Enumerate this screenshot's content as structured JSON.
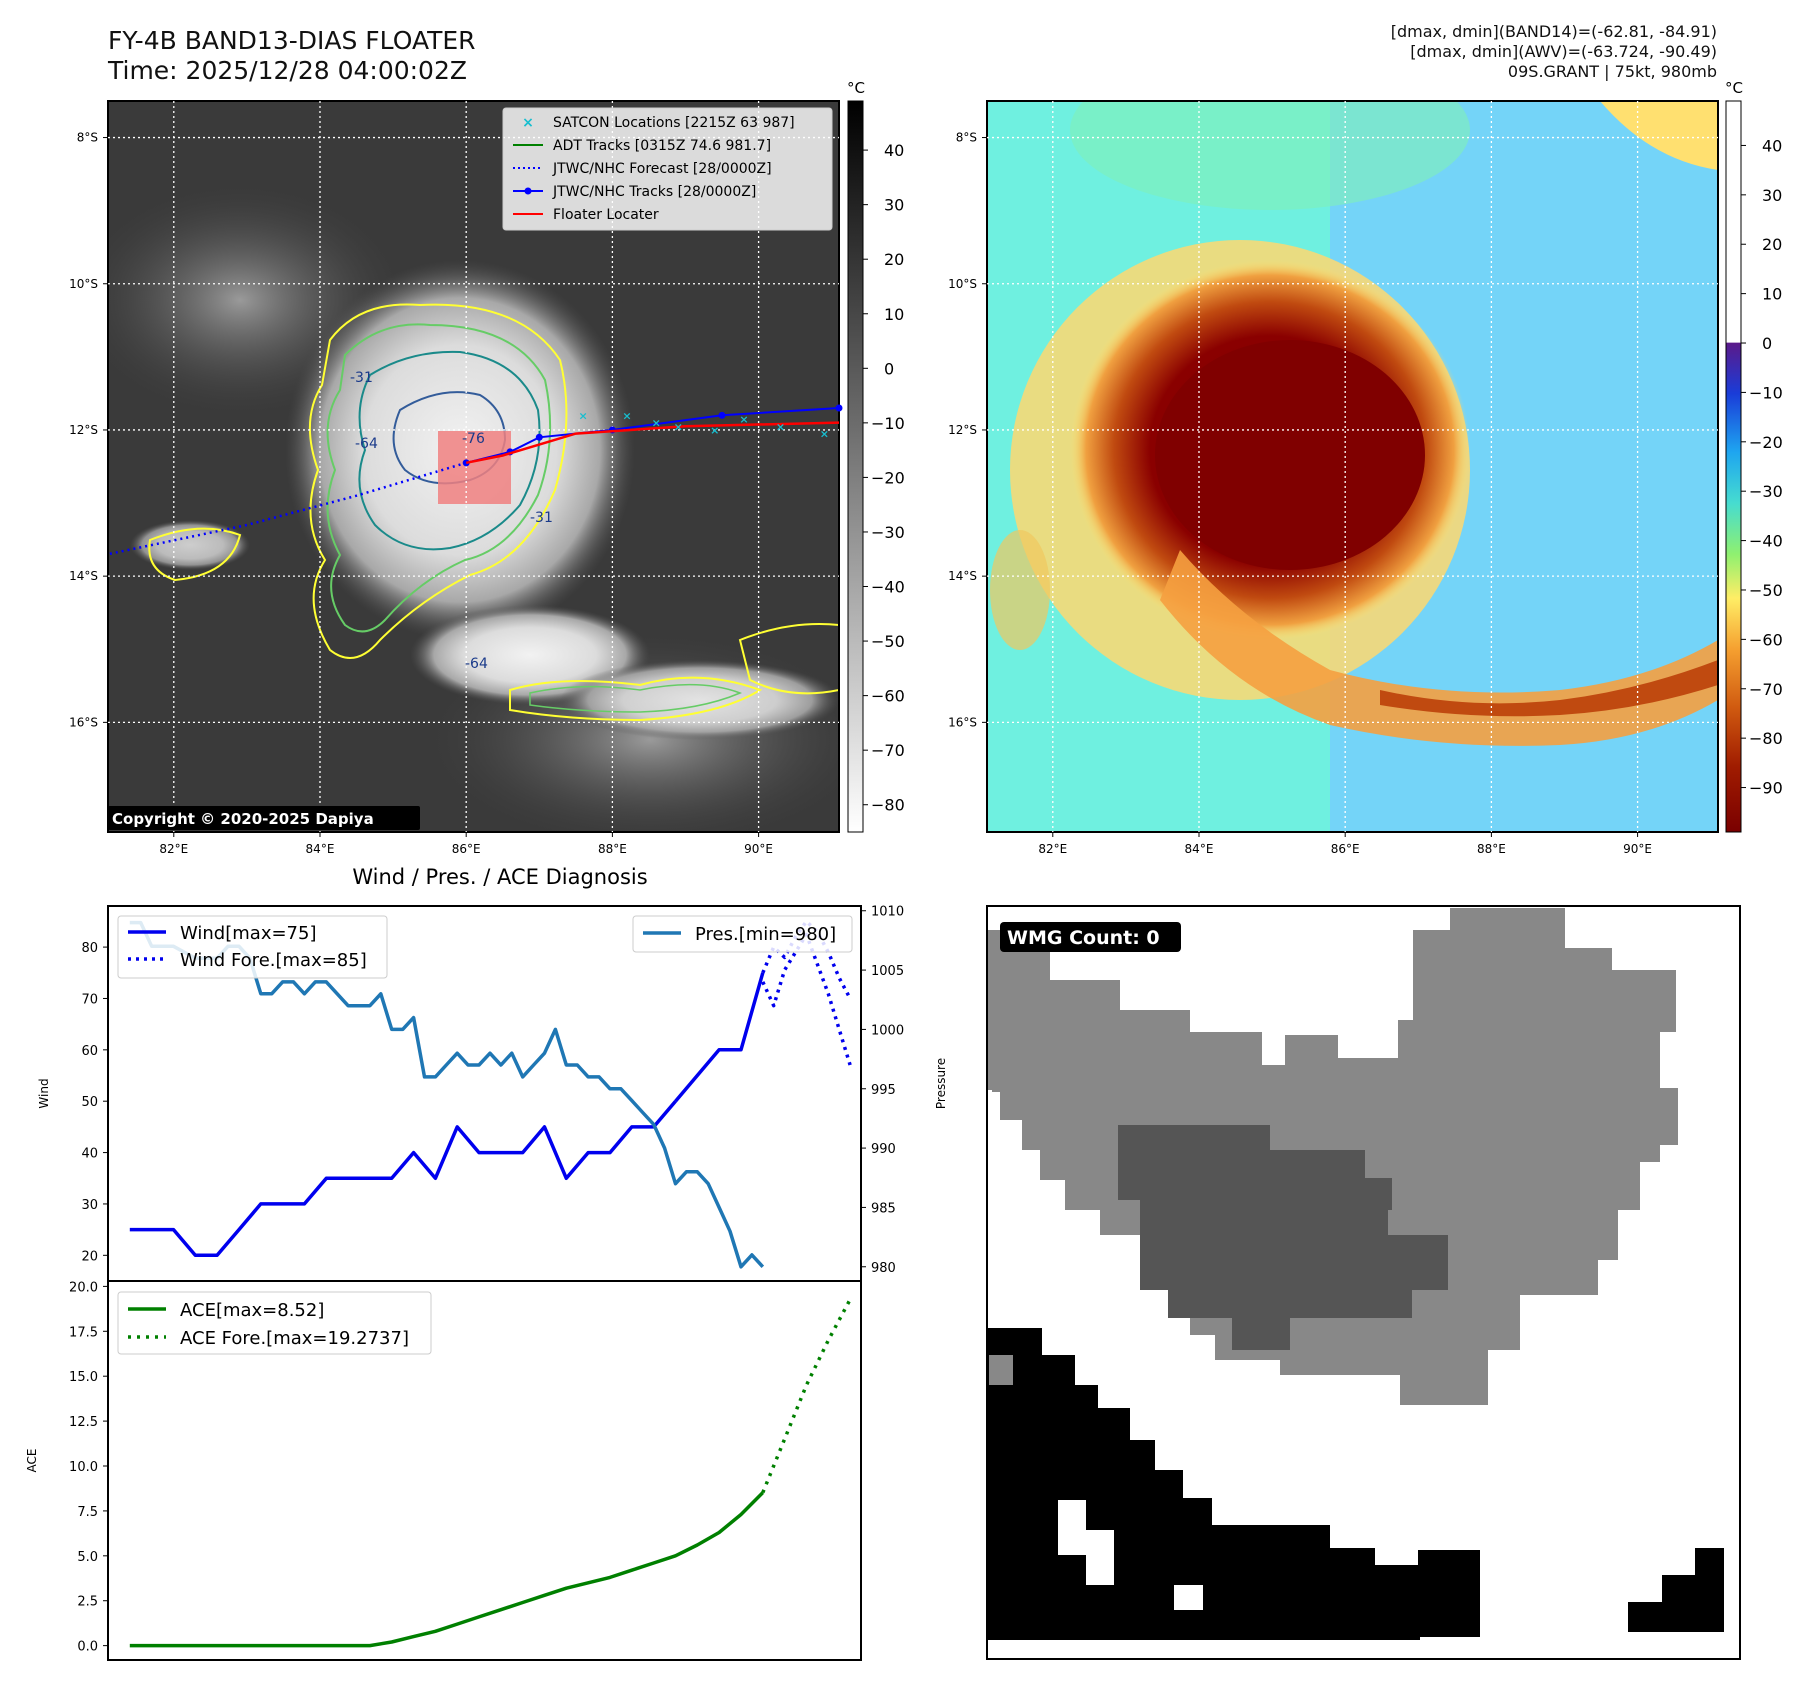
{
  "header": {
    "title_line1": "FY-4B BAND13-DIAS FLOATER",
    "title_line2": "Time: 2025/12/28 04:00:02Z",
    "info_line1": "[dmax, dmin](BAND14)=(-62.81, -84.91)",
    "info_line2": "[dmax, dmin](AWV)=(-63.724, -90.49)",
    "info_line3": "09S.GRANT | 75kt, 980mb"
  },
  "colors": {
    "wind": "#0000ee",
    "pressure": "#1f77b4",
    "ace": "#008000",
    "track_red": "#ff0000",
    "contour_yellow": "#ffff33",
    "contour_green": "#66cc66",
    "contour_teal": "#1a8a8a"
  },
  "chart_data": [
    {
      "type": "image",
      "name": "ir-map",
      "xticklabels": [
        "82°E",
        "84°E",
        "86°E",
        "88°E",
        "90°E"
      ],
      "xticks": [
        82,
        84,
        86,
        88,
        90
      ],
      "yticklabels": [
        "8°S",
        "10°S",
        "12°S",
        "14°S",
        "16°S"
      ],
      "yticks": [
        8,
        10,
        12,
        14,
        16
      ],
      "lon_range": [
        81.1,
        91.1
      ],
      "lat_range": [
        7.5,
        17.5
      ],
      "colorbar_unit": "°C",
      "colorbar_ticks": [
        40,
        30,
        20,
        10,
        0,
        -10,
        -20,
        -30,
        -40,
        -50,
        -60,
        -70,
        -80
      ],
      "colorbar_range": [
        49,
        -85
      ],
      "contour_labels": [
        "-31",
        "-64",
        "-76",
        "-31",
        "-64"
      ],
      "copyright": "Copyright © 2020-2025 Dapiya",
      "legend": [
        {
          "label": "SATCON Locations [2215Z 63 987]",
          "style": "x",
          "color": "#17becf"
        },
        {
          "label": "ADT Tracks [0315Z 74.6 981.7]",
          "style": "line",
          "color": "#008000"
        },
        {
          "label": "JTWC/NHC Forecast [28/0000Z]",
          "style": "dotted",
          "color": "#0000ff"
        },
        {
          "label": "JTWC/NHC Tracks [28/0000Z]",
          "style": "line-dot",
          "color": "#0000ff"
        },
        {
          "label": "Floater Locater",
          "style": "line",
          "color": "#ff0000"
        }
      ],
      "jtwc_track": [
        [
          91.1,
          11.7
        ],
        [
          89.5,
          11.8
        ],
        [
          88.0,
          12.0
        ],
        [
          87.0,
          12.1
        ],
        [
          86.6,
          12.3
        ],
        [
          86.0,
          12.45
        ]
      ],
      "jtwc_forecast": [
        [
          86.0,
          12.45
        ],
        [
          84.5,
          12.9
        ],
        [
          83.0,
          13.3
        ],
        [
          81.1,
          13.7
        ]
      ],
      "floater_track": [
        [
          91.1,
          11.9
        ],
        [
          89.0,
          11.95
        ],
        [
          87.5,
          12.05
        ],
        [
          86.5,
          12.35
        ],
        [
          86.0,
          12.45
        ]
      ]
    },
    {
      "type": "image",
      "name": "awv-map",
      "xticklabels": [
        "82°E",
        "84°E",
        "86°E",
        "88°E",
        "90°E"
      ],
      "xticks": [
        82,
        84,
        86,
        88,
        90
      ],
      "yticklabels": [
        "8°S",
        "10°S",
        "12°S",
        "14°S",
        "16°S"
      ],
      "yticks": [
        8,
        10,
        12,
        14,
        16
      ],
      "colorbar_unit": "°C",
      "colorbar_ticks": [
        40,
        30,
        20,
        10,
        0,
        -10,
        -20,
        -30,
        -40,
        -50,
        -60,
        -70,
        -80,
        -90
      ],
      "colorbar_range": [
        49,
        -99
      ]
    },
    {
      "type": "line",
      "name": "wind-pressure",
      "title": "Wind / Pres. / ACE Diagnosis",
      "ylabel": "Wind",
      "ylabel2": "Pressure",
      "ylim": [
        15,
        88
      ],
      "ylim2": [
        978.8,
        1010.4
      ],
      "xlim": [
        -1,
        33.5
      ],
      "yticks": [
        20,
        30,
        40,
        50,
        60,
        70,
        80
      ],
      "yticks2": [
        980,
        985,
        990,
        995,
        1000,
        1005,
        1010
      ],
      "series": [
        {
          "name": "Wind[max=75]",
          "style": "solid",
          "color": "#0000ee",
          "x": [
            0,
            1,
            2,
            3,
            4,
            5,
            6,
            7,
            8,
            9,
            10,
            11,
            12,
            13,
            14,
            15,
            16,
            17,
            18,
            19,
            20,
            21,
            22,
            23,
            24,
            25
          ],
          "values": [
            25,
            25,
            25,
            20,
            20,
            25,
            30,
            30,
            30,
            35,
            35,
            35,
            35,
            40,
            35,
            45,
            40,
            40,
            40,
            45,
            35,
            40,
            40,
            45,
            45,
            50
          ]
        },
        {
          "name": "Wind[max=75]",
          "style": "solid",
          "color": "#0000ee",
          "x": [
            25,
            26,
            27,
            28,
            29
          ],
          "values": [
            50,
            55,
            60,
            60,
            75
          ]
        },
        {
          "name": "Wind Fore.[max=85]",
          "style": "dotted",
          "color": "#0000ee",
          "x": [
            29,
            29.5,
            30,
            30.5,
            31,
            31.5,
            32,
            32.5,
            33
          ],
          "values": [
            75,
            80,
            78,
            82,
            85,
            83,
            79,
            74,
            70
          ]
        },
        {
          "name": "Pres.[min=980]",
          "style": "solid",
          "color": "#1f77b4",
          "axis": "right",
          "x": [
            0,
            0.5,
            1,
            2,
            3,
            3.5,
            4,
            4.5,
            5,
            5.5,
            6,
            6.5,
            7,
            7.5,
            8,
            8.5,
            9,
            9.5,
            10,
            10.5,
            11,
            11.5,
            12,
            12.5,
            13,
            13.5,
            14,
            14.5,
            15,
            15.5,
            16,
            16.5,
            17,
            17.5,
            18,
            18.5,
            19,
            19.5,
            20,
            20.5,
            21,
            21.5,
            22,
            22.5,
            23,
            23.5,
            24,
            24.5,
            25,
            25.5,
            26,
            26.5,
            27,
            27.5,
            28,
            28.5,
            29
          ],
          "values": [
            1009,
            1009,
            1007,
            1007,
            1006,
            1006,
            1006,
            1007,
            1007,
            1006,
            1003,
            1003,
            1004,
            1004,
            1003,
            1004,
            1004,
            1003,
            1002,
            1002,
            1002,
            1003,
            1000,
            1000,
            1001,
            996,
            996,
            997,
            998,
            997,
            997,
            998,
            997,
            998,
            996,
            997,
            998,
            1000,
            997,
            997,
            996,
            996,
            995,
            995,
            994,
            993,
            992,
            990,
            987,
            988,
            988,
            987,
            985,
            983,
            980,
            981,
            980
          ]
        },
        {
          "name": "Pres.[min=980]",
          "style": "dotted",
          "color": "#0000ee",
          "axis": "right",
          "x": [
            29,
            29.5,
            30,
            31,
            32,
            32.5,
            33
          ],
          "values": [
            1004,
            1002,
            1005,
            1008,
            1003,
            1000,
            997
          ]
        }
      ]
    },
    {
      "type": "line",
      "name": "ace",
      "ylabel": "ACE",
      "ylim": [
        -0.8,
        20.3
      ],
      "xlim": [
        -1,
        33.5
      ],
      "yticks": [
        0.0,
        2.5,
        5.0,
        7.5,
        10.0,
        12.5,
        15.0,
        17.5,
        20.0
      ],
      "yticklabels": [
        "0.0",
        "2.5",
        "5.0",
        "7.5",
        "10.0",
        "12.5",
        "15.0",
        "17.5",
        "20.0"
      ],
      "series": [
        {
          "name": "ACE[max=8.52]",
          "style": "solid",
          "color": "#008000",
          "x": [
            0,
            2,
            4,
            6,
            7,
            8,
            9,
            10,
            11,
            12,
            13,
            14,
            15,
            16,
            17,
            18,
            19,
            20,
            21,
            22,
            23,
            24,
            25,
            26,
            27,
            28,
            29
          ],
          "values": [
            0,
            0,
            0,
            0,
            0,
            0,
            0,
            0,
            0,
            0.2,
            0.5,
            0.8,
            1.2,
            1.6,
            2.0,
            2.4,
            2.8,
            3.2,
            3.5,
            3.8,
            4.2,
            4.6,
            5.0,
            5.6,
            6.3,
            7.3,
            8.52
          ]
        },
        {
          "name": "ACE Fore.[max=19.2737]",
          "style": "dotted",
          "color": "#008000",
          "x": [
            29,
            30,
            31,
            32,
            33
          ],
          "values": [
            8.52,
            11.5,
            14.5,
            17.0,
            19.27
          ]
        }
      ]
    },
    {
      "type": "heatmap",
      "name": "wmg-panel",
      "label": "WMG Count: 0"
    }
  ]
}
